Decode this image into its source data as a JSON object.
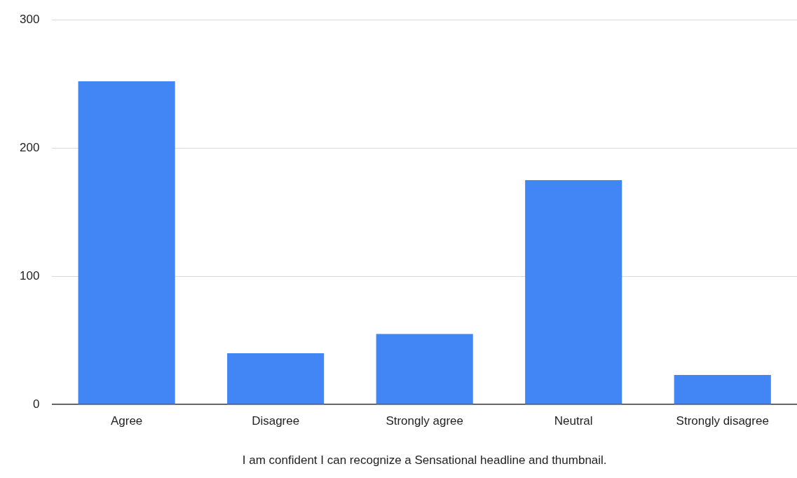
{
  "chart_data": {
    "type": "bar",
    "xlabel": "I am confident I can recognize a Sensational headline and thumbnail.",
    "categories": [
      "Agree",
      "Disagree",
      "Strongly agree",
      "Neutral",
      "Strongly disagree"
    ],
    "values": [
      252,
      40,
      55,
      175,
      23
    ],
    "color": "#4285f4",
    "ylim": [
      0,
      300
    ],
    "yticks": [
      0,
      100,
      200,
      300
    ],
    "grid": "y"
  }
}
